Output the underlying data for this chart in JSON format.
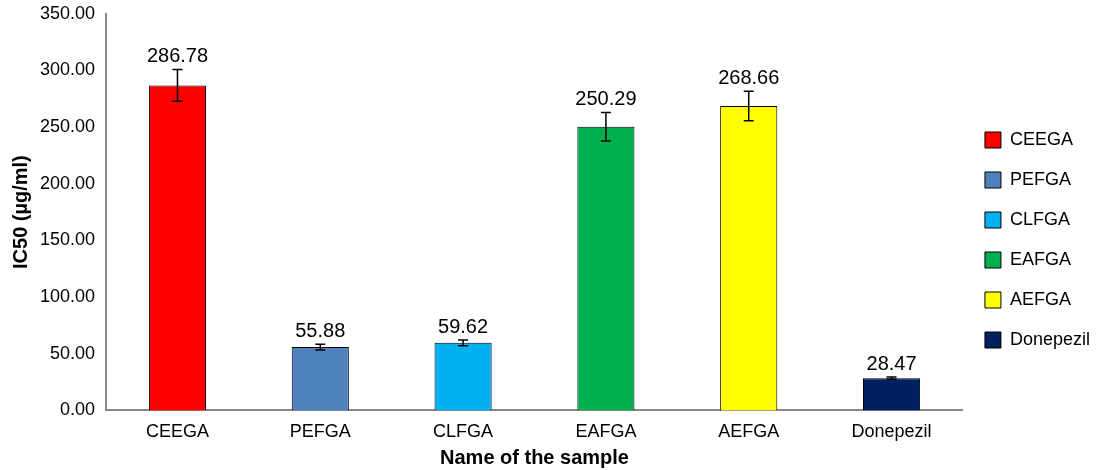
{
  "chart_data": {
    "type": "bar",
    "xlabel": "Name of the sample",
    "ylabel": "IC50 (µg/ml)",
    "categories": [
      "CEEGA",
      "PEFGA",
      "CLFGA",
      "EAFGA",
      "AEFGA",
      "Donepezil"
    ],
    "series": [
      {
        "name": "CEEGA",
        "color": "#ff0000",
        "values": [
          286.78,
          null,
          null,
          null,
          null,
          null
        ],
        "errors": [
          14,
          null,
          null,
          null,
          null,
          null
        ]
      },
      {
        "name": "PEFGA",
        "color": "#4f81bd",
        "values": [
          null,
          55.88,
          null,
          null,
          null,
          null
        ],
        "errors": [
          null,
          2.5,
          null,
          null,
          null,
          null
        ]
      },
      {
        "name": "CLFGA",
        "color": "#00b0f0",
        "values": [
          null,
          null,
          59.62,
          null,
          null,
          null
        ],
        "errors": [
          null,
          null,
          2.5,
          null,
          null,
          null
        ]
      },
      {
        "name": "EAFGA",
        "color": "#00b050",
        "values": [
          null,
          null,
          null,
          250.29,
          null,
          null
        ],
        "errors": [
          null,
          null,
          null,
          12.5,
          null,
          null
        ]
      },
      {
        "name": "AEFGA",
        "color": "#ffff00",
        "values": [
          null,
          null,
          null,
          null,
          268.66,
          null
        ],
        "errors": [
          null,
          null,
          null,
          null,
          13,
          null
        ]
      },
      {
        "name": "Donepezil",
        "color": "#002060",
        "values": [
          null,
          null,
          null,
          null,
          null,
          28.47
        ],
        "errors": [
          null,
          null,
          null,
          null,
          null,
          1
        ]
      }
    ],
    "data_labels": true,
    "ylim": [
      0,
      350
    ],
    "yticks": [
      {
        "value": 0,
        "label": "0.00"
      },
      {
        "value": 50,
        "label": "50.00"
      },
      {
        "value": 100,
        "label": "100.00"
      },
      {
        "value": 150,
        "label": "150.00"
      },
      {
        "value": 200,
        "label": "200.00"
      },
      {
        "value": 250,
        "label": "250.00"
      },
      {
        "value": 300,
        "label": "300.00"
      },
      {
        "value": 350,
        "label": "350.00"
      }
    ],
    "grid": false,
    "legend": "right"
  }
}
